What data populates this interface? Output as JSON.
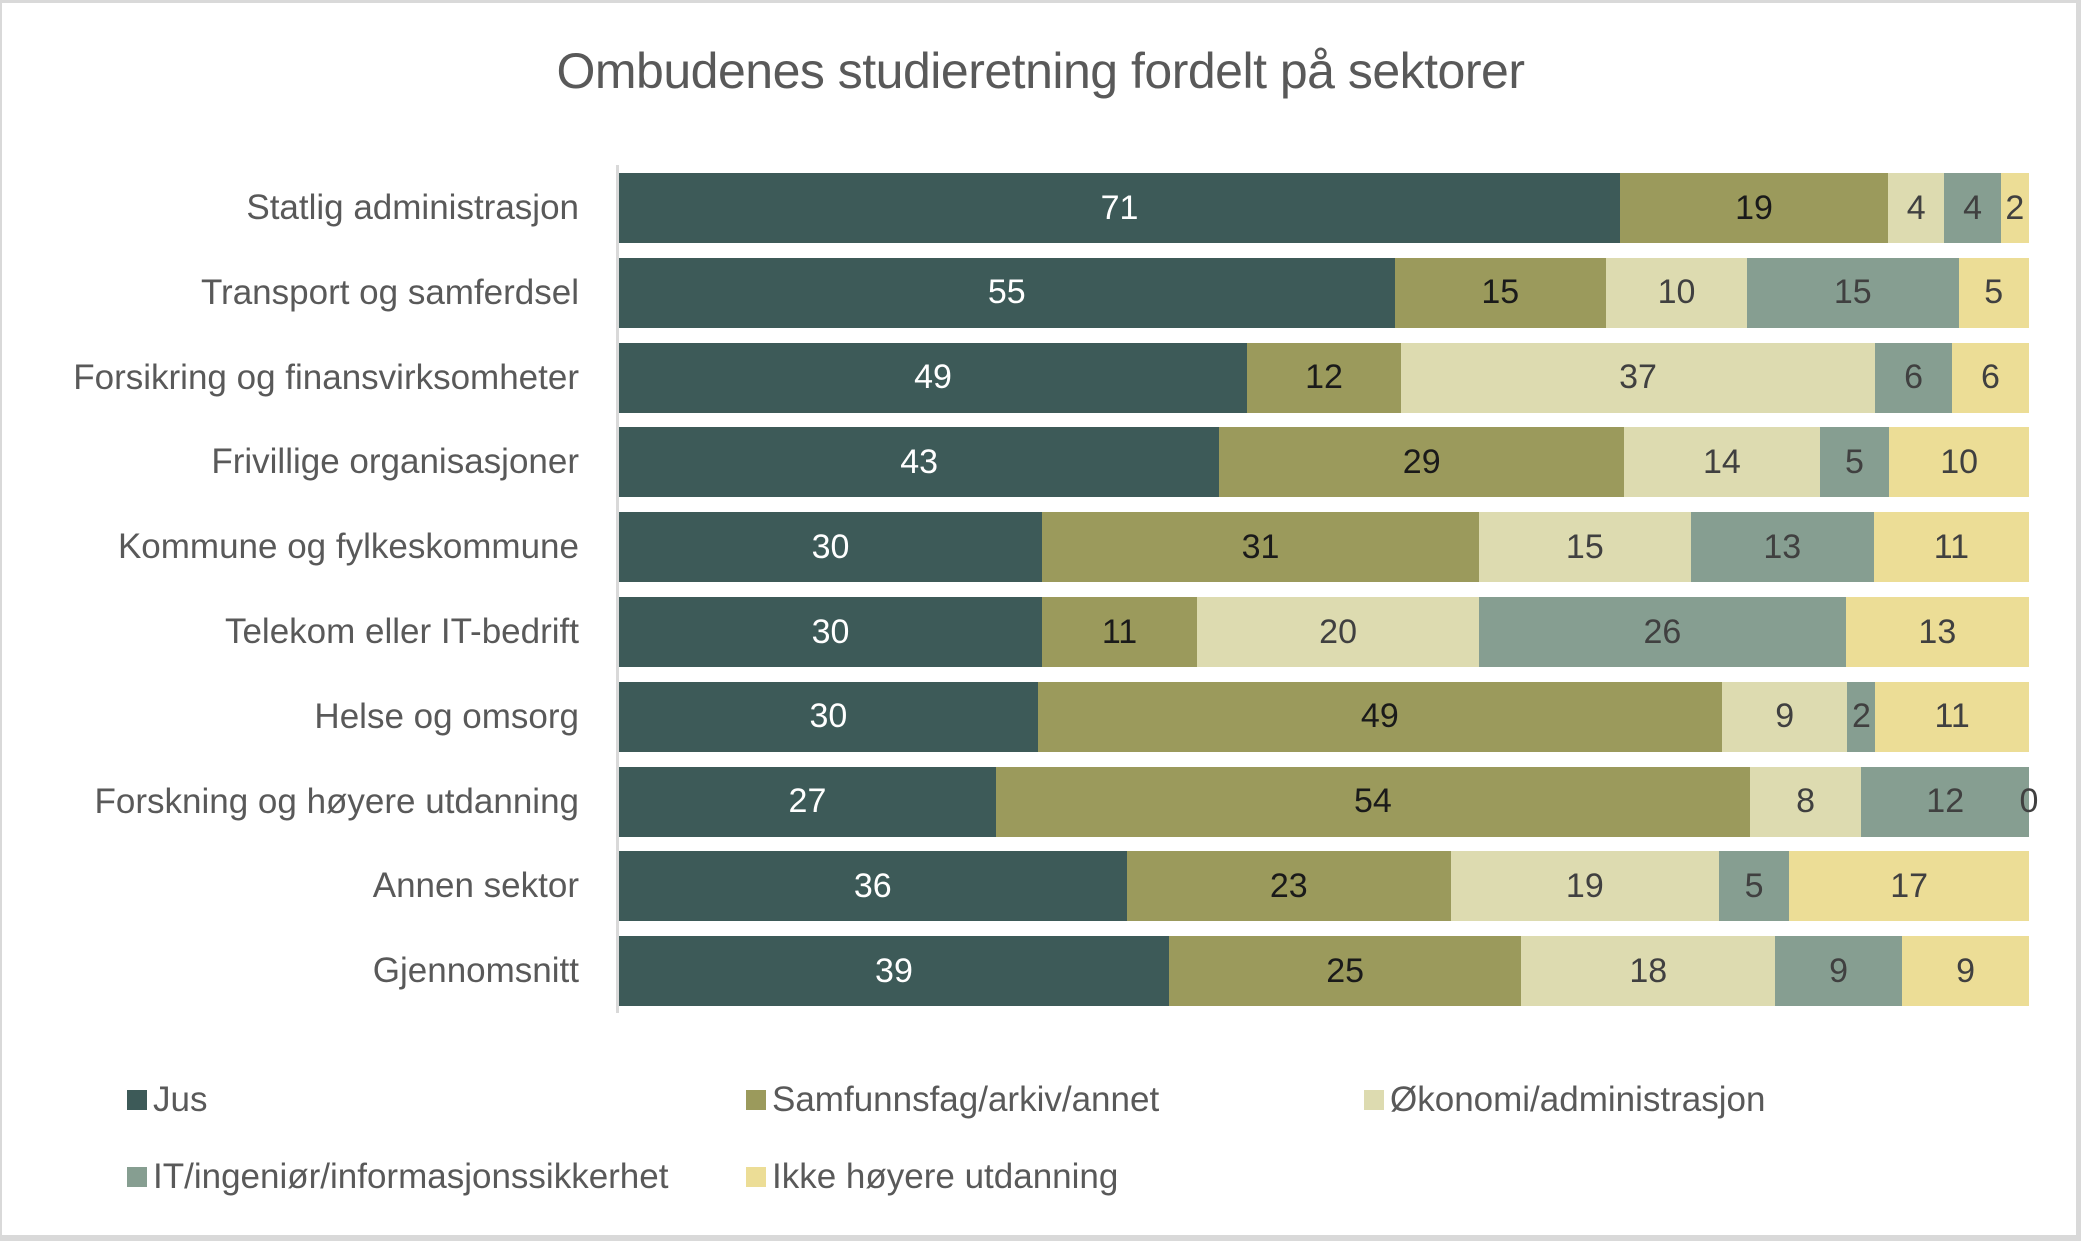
{
  "chart_data": {
    "type": "bar",
    "orientation": "horizontal",
    "stacked": "percent",
    "title": "Ombudenes studieretning fordelt på sektorer",
    "xlabel": "",
    "ylabel": "",
    "grid": false,
    "legend_position": "bottom",
    "categories": [
      "Statlig administrasjon",
      "Transport og samferdsel",
      "Forsikring og finansvirksomheter",
      "Frivillige organisasjoner",
      "Kommune og fylkeskommune",
      "Telekom eller IT-bedrift",
      "Helse og omsorg",
      "Forskning og høyere utdanning",
      "Annen sektor",
      "Gjennomsnitt"
    ],
    "series": [
      {
        "name": "Jus",
        "color": "#3d5a58",
        "label_color": "#ffffff",
        "values": [
          71,
          55,
          49,
          43,
          30,
          30,
          30,
          27,
          36,
          39
        ]
      },
      {
        "name": "Samfunnsfag/arkiv/annet",
        "color": "#9b9a5c",
        "label_color": "#1a1a1a",
        "values": [
          19,
          15,
          12,
          29,
          31,
          11,
          49,
          54,
          23,
          25
        ]
      },
      {
        "name": "Økonomi/administrasjon",
        "color": "#dddbb0",
        "label_color": "#404040",
        "values": [
          4,
          10,
          37,
          14,
          15,
          20,
          9,
          8,
          19,
          18
        ]
      },
      {
        "name": "IT/ingeniør/informasjonssikkerhet",
        "color": "#869e91",
        "label_color": "#404040",
        "values": [
          4,
          15,
          6,
          5,
          13,
          26,
          2,
          12,
          5,
          9
        ]
      },
      {
        "name": "Ikke høyere utdanning",
        "color": "#ecdd96",
        "label_color": "#404040",
        "values": [
          2,
          5,
          6,
          10,
          11,
          13,
          11,
          0,
          17,
          9
        ]
      }
    ]
  }
}
